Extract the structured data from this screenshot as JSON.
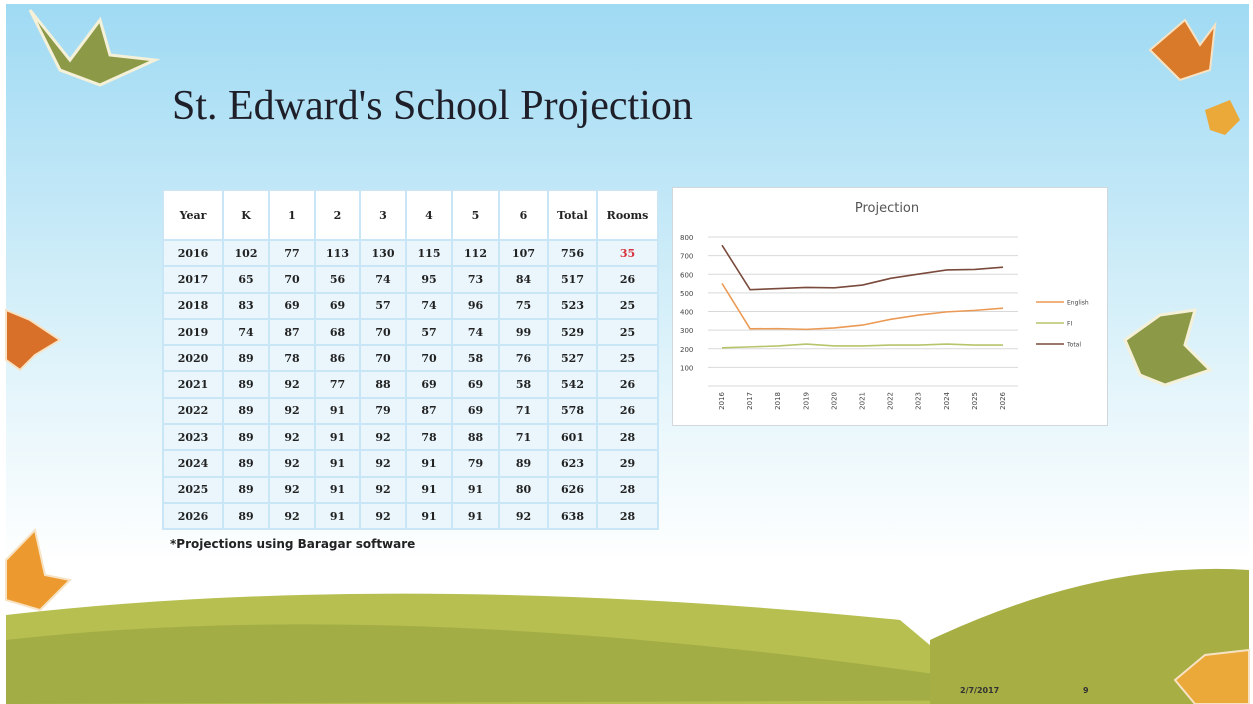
{
  "title": "St. Edward's School Projection",
  "table": {
    "header": [
      "Year",
      "K",
      "1",
      "2",
      "3",
      "4",
      "5",
      "6",
      "Total",
      "Rooms"
    ],
    "rows": [
      [
        2016,
        102,
        77,
        113,
        130,
        115,
        112,
        107,
        756,
        35
      ],
      [
        2017,
        65,
        70,
        56,
        74,
        95,
        73,
        84,
        517,
        26
      ],
      [
        2018,
        83,
        69,
        69,
        57,
        74,
        96,
        75,
        523,
        25
      ],
      [
        2019,
        74,
        87,
        68,
        70,
        57,
        74,
        99,
        529,
        25
      ],
      [
        2020,
        89,
        78,
        86,
        70,
        70,
        58,
        76,
        527,
        25
      ],
      [
        2021,
        89,
        92,
        77,
        88,
        69,
        69,
        58,
        542,
        26
      ],
      [
        2022,
        89,
        92,
        91,
        79,
        87,
        69,
        71,
        578,
        26
      ],
      [
        2023,
        89,
        92,
        91,
        92,
        78,
        88,
        71,
        601,
        28
      ],
      [
        2024,
        89,
        92,
        91,
        92,
        91,
        79,
        89,
        623,
        29
      ],
      [
        2025,
        89,
        92,
        91,
        92,
        91,
        91,
        80,
        626,
        28
      ],
      [
        2026,
        89,
        92,
        91,
        92,
        91,
        91,
        92,
        638,
        28
      ]
    ]
  },
  "footnote": "*Projections using Baragar software",
  "chart_data": {
    "type": "line",
    "title": "Projection",
    "categories": [
      "2016",
      "2017",
      "2018",
      "2019",
      "2020",
      "2021",
      "2022",
      "2023",
      "2024",
      "2025",
      "2026"
    ],
    "series": [
      {
        "name": "English",
        "color": "#eb9a55",
        "values": [
          551,
          307,
          308,
          304,
          312,
          327,
          358,
          381,
          398,
          406,
          418
        ]
      },
      {
        "name": "FI",
        "color": "#b8c46c",
        "values": [
          205,
          210,
          215,
          225,
          215,
          215,
          220,
          220,
          225,
          220,
          220
        ]
      },
      {
        "name": "Total",
        "color": "#7a4a3c",
        "values": [
          756,
          517,
          523,
          529,
          527,
          542,
          578,
          601,
          623,
          626,
          638
        ]
      }
    ],
    "ylim": [
      0,
      800
    ],
    "yticks": [
      100,
      200,
      300,
      400,
      500,
      600,
      700,
      800
    ],
    "grid": true,
    "legend": "right"
  },
  "footer": {
    "date": "2/7/2017",
    "page": "9"
  }
}
